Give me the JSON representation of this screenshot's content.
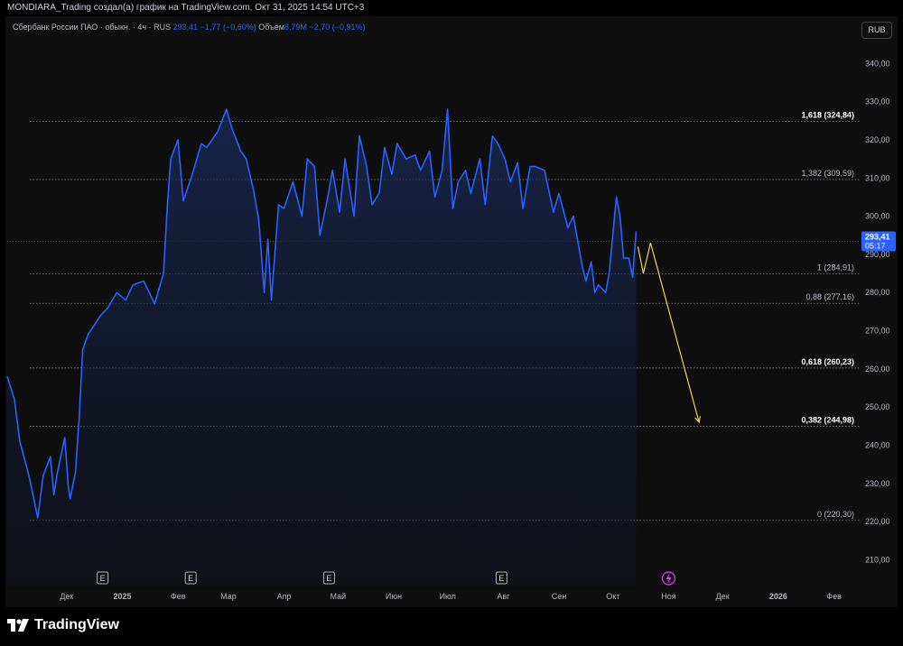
{
  "header": {
    "caption": "MONDIARA_Trading создал(а) график на TradingView.com, Окт 31, 2025 14:54 UTC+3"
  },
  "legend": {
    "symbol": "Сбербанк России ПАО · обыкн. · 4ч · RUS",
    "price": "293,41",
    "change": "−1,77 (−0,60%)",
    "volume_label": "Объём",
    "volume": "8,79M",
    "volume_change": "−2,70 (−0,91%)"
  },
  "currency_button": "RUB",
  "price_tag": {
    "price": "293,41",
    "countdown": "05:17"
  },
  "brand": {
    "name": "TradingView"
  },
  "colors": {
    "line": "#2962ff",
    "fill": "#131d3b",
    "projection": "#e8d25a",
    "price_tag": "#2962ff",
    "background": "#0f0f0f"
  },
  "event_icons": [
    "E",
    "E",
    "E",
    "E",
    "dividend-icon"
  ],
  "chart_data": {
    "type": "area",
    "symbol": "Сбербанк России ПАО",
    "timeframe": "4ч",
    "yaxis": {
      "range": [
        203,
        350
      ],
      "ticks": [
        "210,00",
        "220,00",
        "230,00",
        "240,00",
        "250,00",
        "260,00",
        "270,00",
        "280,00",
        "290,00",
        "300,00",
        "310,00",
        "320,00",
        "330,00",
        "340,00"
      ]
    },
    "xaxis": {
      "ticks": [
        "Дек",
        "2025",
        "Фев",
        "Мар",
        "Апр",
        "Май",
        "Июн",
        "Июл",
        "Авг",
        "Сен",
        "Окт",
        "Ноя",
        "Дек",
        "2026",
        "Фев"
      ]
    },
    "series": [
      {
        "x": [
          "2024-11-15",
          "2024-11-19",
          "2024-11-22",
          "2024-11-26",
          "2024-11-28",
          "2024-12-02",
          "2024-12-05",
          "2024-12-09",
          "2024-12-11",
          "2024-12-13",
          "2024-12-17",
          "2024-12-19",
          "2024-12-20",
          "2024-12-23",
          "2024-12-25",
          "2024-12-27",
          "2024-12-30",
          "2025-01-06",
          "2025-01-10",
          "2025-01-15",
          "2025-01-20",
          "2025-01-24",
          "2025-01-30",
          "2025-02-05",
          "2025-02-10",
          "2025-02-12",
          "2025-02-14",
          "2025-02-18",
          "2025-02-21",
          "2025-02-26",
          "2025-03-03",
          "2025-03-06",
          "2025-03-12",
          "2025-03-17",
          "2025-03-20",
          "2025-03-25",
          "2025-03-28",
          "2025-04-01",
          "2025-04-04",
          "2025-04-07",
          "2025-04-09",
          "2025-04-11",
          "2025-04-15",
          "2025-04-18",
          "2025-04-23",
          "2025-04-28",
          "2025-05-01",
          "2025-05-05",
          "2025-05-08",
          "2025-05-12",
          "2025-05-15",
          "2025-05-19",
          "2025-05-22",
          "2025-05-27",
          "2025-05-30",
          "2025-06-03",
          "2025-06-06",
          "2025-06-10",
          "2025-06-13",
          "2025-06-17",
          "2025-06-20",
          "2025-06-25",
          "2025-06-30",
          "2025-07-03",
          "2025-07-08",
          "2025-07-11",
          "2025-07-15",
          "2025-07-18",
          "2025-07-21",
          "2025-07-24",
          "2025-07-28",
          "2025-07-31",
          "2025-08-05",
          "2025-08-08",
          "2025-08-12",
          "2025-08-15",
          "2025-08-19",
          "2025-08-22",
          "2025-08-26",
          "2025-08-29",
          "2025-09-02",
          "2025-09-05",
          "2025-09-10",
          "2025-09-15",
          "2025-09-18",
          "2025-09-23",
          "2025-09-26",
          "2025-10-01",
          "2025-10-03",
          "2025-10-06",
          "2025-10-08",
          "2025-10-10",
          "2025-10-14",
          "2025-10-16",
          "2025-10-20",
          "2025-10-22",
          "2025-10-24",
          "2025-10-27",
          "2025-10-29",
          "2025-10-31"
        ],
        "y": [
          258,
          252,
          241,
          234,
          230,
          221,
          232,
          237,
          227,
          233,
          242,
          229,
          226,
          233,
          247,
          265,
          269,
          274,
          276,
          280,
          278,
          282,
          283,
          277,
          285,
          302,
          315,
          320,
          304,
          311,
          319,
          318,
          322,
          328,
          323,
          317,
          315,
          307,
          299,
          280,
          294,
          278,
          303,
          302,
          309,
          300,
          315,
          313,
          295,
          304,
          312,
          301,
          315,
          300,
          321,
          313,
          303,
          306,
          318,
          311,
          319,
          315,
          316,
          312,
          317,
          305,
          312,
          328,
          302,
          309,
          312,
          306,
          315,
          303,
          321,
          319,
          315,
          309,
          314,
          302,
          313,
          313,
          312,
          301,
          306,
          297,
          300,
          287,
          283,
          288,
          280,
          282,
          280,
          285,
          305,
          300,
          289,
          289,
          284,
          296
        ]
      }
    ],
    "fibonacci": [
      {
        "ratio": "1,618",
        "value": 324.84,
        "label": "1,618 (324,84)"
      },
      {
        "ratio": "1,382",
        "value": 309.59,
        "label": "1,382 (309,59)"
      },
      {
        "ratio": "1",
        "value": 284.91,
        "label": "1 (284,91)"
      },
      {
        "ratio": "0,88",
        "value": 277.16,
        "label": "0,88 (277,16)"
      },
      {
        "ratio": "0,618",
        "value": 260.23,
        "label": "0,618 (260,23)"
      },
      {
        "ratio": "0,382",
        "value": 244.98,
        "label": "0,382 (244,98)"
      },
      {
        "ratio": "0",
        "value": 220.3,
        "label": "0 (220,30)"
      }
    ],
    "last_price": 293.41,
    "projection": [
      {
        "x": "2025-11-01",
        "y": 292
      },
      {
        "x": "2025-11-04",
        "y": 285
      },
      {
        "x": "2025-11-08",
        "y": 293
      },
      {
        "x": "2025-12-05",
        "y": 246
      }
    ]
  }
}
